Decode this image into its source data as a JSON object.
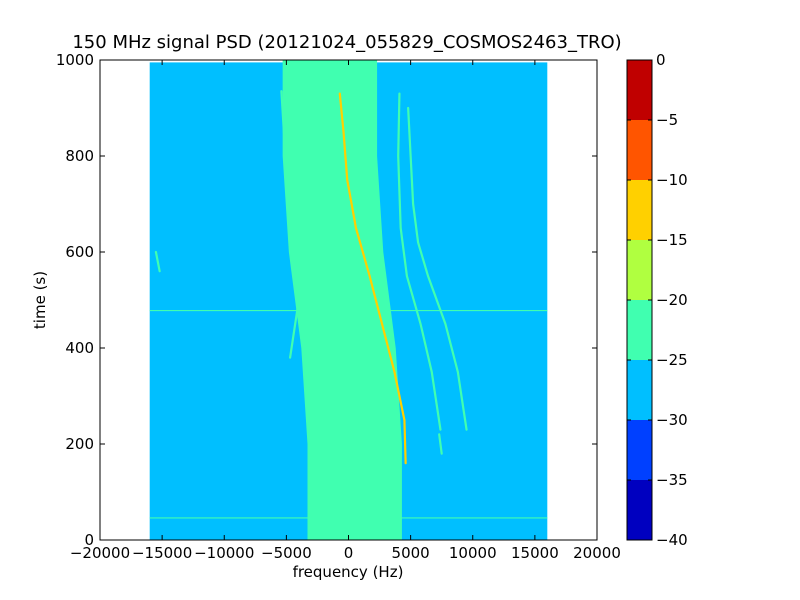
{
  "chart_data": [
    {
      "type": "heatmap",
      "title": "150 MHz signal PSD (20121024_055829_COSMOS2463_TRO)",
      "xlabel": "frequency (Hz)",
      "ylabel": "time (s)",
      "xlim": [
        -20000,
        20000
      ],
      "ylim": [
        0,
        1000
      ],
      "x_ticks": [
        -20000,
        -15000,
        -10000,
        -5000,
        0,
        5000,
        10000,
        15000,
        20000
      ],
      "x_tick_labels": [
        "−20000",
        "−15000",
        "−10000",
        "−5000",
        "0",
        "5000",
        "10000",
        "15000",
        "20000"
      ],
      "y_ticks": [
        0,
        200,
        400,
        600,
        800,
        1000
      ],
      "y_tick_labels": [
        "0",
        "200",
        "400",
        "600",
        "800",
        "1000"
      ],
      "data_extent": {
        "x": [
          -16000,
          16000
        ],
        "y": [
          0,
          995
        ]
      },
      "background_level": -27.5,
      "noise_band": {
        "level": -22.5,
        "center_hz": [
          {
            "t": 0,
            "f": 500
          },
          {
            "t": 200,
            "f": 500
          },
          {
            "t": 400,
            "f": 0
          },
          {
            "t": 600,
            "f": -1000
          },
          {
            "t": 800,
            "f": -1500
          },
          {
            "t": 1000,
            "f": -1500
          }
        ],
        "half_width_hz": 3800
      },
      "horizontal_lines": [
        {
          "t": 478,
          "level": -22.5
        },
        {
          "t": 46,
          "level": -22.5
        }
      ],
      "traces": [
        {
          "name": "",
          "level": -12.5,
          "points": [
            {
              "t": 160,
              "f": 4600
            },
            {
              "t": 250,
              "f": 4500
            },
            {
              "t": 350,
              "f": 3700
            },
            {
              "t": 450,
              "f": 2700
            },
            {
              "t": 550,
              "f": 1700
            },
            {
              "t": 650,
              "f": 600
            },
            {
              "t": 750,
              "f": -100
            },
            {
              "t": 850,
              "f": -400
            },
            {
              "t": 930,
              "f": -700
            }
          ]
        },
        {
          "name": "",
          "level": -22.5,
          "points": [
            {
              "t": 380,
              "f": -4700
            },
            {
              "t": 500,
              "f": -4000
            },
            {
              "t": 620,
              "f": -4300
            },
            {
              "t": 750,
              "f": -4900
            },
            {
              "t": 850,
              "f": -5200
            },
            {
              "t": 935,
              "f": -5400
            }
          ]
        },
        {
          "name": "",
          "level": -22.5,
          "points": [
            {
              "t": 230,
              "f": 7400
            },
            {
              "t": 350,
              "f": 6700
            },
            {
              "t": 450,
              "f": 5800
            },
            {
              "t": 550,
              "f": 4700
            },
            {
              "t": 650,
              "f": 4200
            },
            {
              "t": 800,
              "f": 4000
            },
            {
              "t": 930,
              "f": 4100
            }
          ]
        },
        {
          "name": "",
          "level": -22.5,
          "points": [
            {
              "t": 230,
              "f": 9500
            },
            {
              "t": 350,
              "f": 8800
            },
            {
              "t": 450,
              "f": 7800
            },
            {
              "t": 550,
              "f": 6400
            },
            {
              "t": 620,
              "f": 5600
            },
            {
              "t": 700,
              "f": 5200
            },
            {
              "t": 800,
              "f": 5000
            },
            {
              "t": 900,
              "f": 4800
            }
          ]
        },
        {
          "name": "",
          "level": -22.5,
          "points": [
            {
              "t": 180,
              "f": 7500
            },
            {
              "t": 220,
              "f": 7300
            }
          ]
        },
        {
          "name": "",
          "level": -22.5,
          "points": [
            {
              "t": 600,
              "f": -15500
            },
            {
              "t": 560,
              "f": -15200
            }
          ]
        }
      ]
    },
    {
      "type": "colorbar",
      "range": [
        -40,
        0
      ],
      "tick_values": [
        0,
        -5,
        -10,
        -15,
        -20,
        -25,
        -30,
        -35,
        -40
      ],
      "tick_labels": [
        "0",
        "−5",
        "−10",
        "−15",
        "−20",
        "−25",
        "−30",
        "−35",
        "−40"
      ],
      "bins": [
        {
          "from": -40,
          "to": -35,
          "color": "#0000c0"
        },
        {
          "from": -35,
          "to": -30,
          "color": "#0040ff"
        },
        {
          "from": -30,
          "to": -25,
          "color": "#00bfff"
        },
        {
          "from": -25,
          "to": -20,
          "color": "#40ffb0"
        },
        {
          "from": -20,
          "to": -15,
          "color": "#b0ff40"
        },
        {
          "from": -15,
          "to": -10,
          "color": "#ffd000"
        },
        {
          "from": -10,
          "to": -5,
          "color": "#ff5500"
        },
        {
          "from": -5,
          "to": 0,
          "color": "#c00000"
        }
      ]
    }
  ]
}
